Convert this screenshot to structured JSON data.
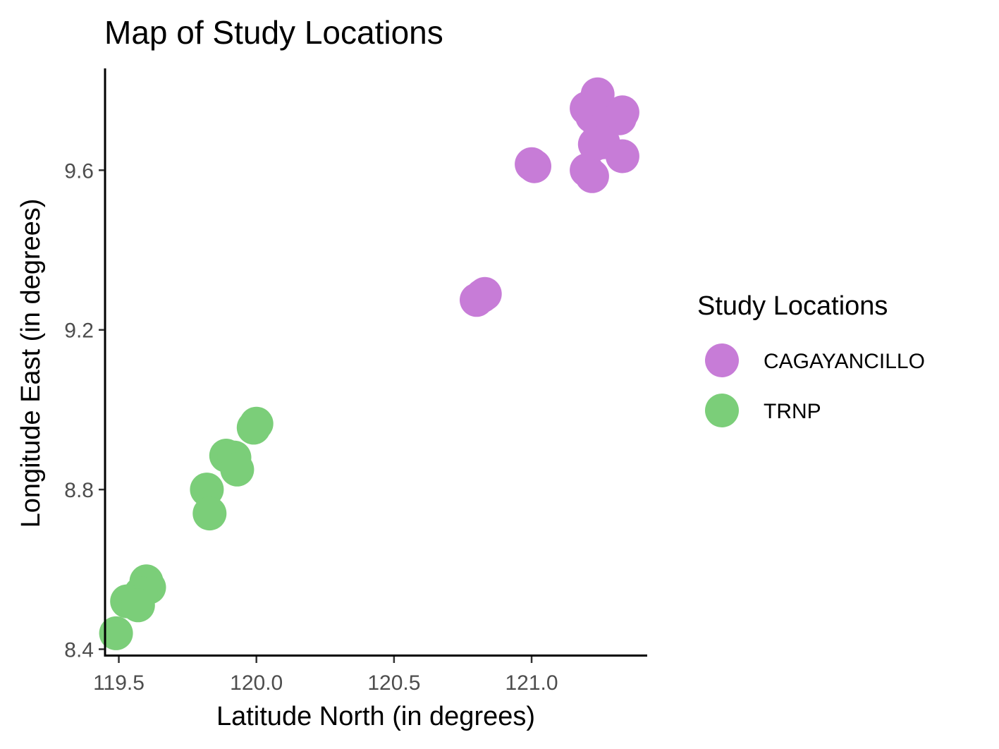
{
  "chart_data": {
    "type": "scatter",
    "title": "Map of Study Locations",
    "xlabel": "Latitude North (in degrees)",
    "ylabel": "Longitude East (in degrees)",
    "xlim": [
      119.45,
      121.42
    ],
    "ylim": [
      8.385,
      9.855
    ],
    "x_ticks": [
      119.5,
      120.0,
      120.5,
      121.0
    ],
    "x_tick_labels": [
      "119.5",
      "120.0",
      "120.5",
      "121.0"
    ],
    "y_ticks": [
      8.4,
      8.8,
      9.2,
      9.6
    ],
    "y_tick_labels": [
      "8.4",
      "8.8",
      "9.2",
      "9.6"
    ],
    "grid": false,
    "legend": {
      "title": "Study Locations",
      "placement": "right"
    },
    "series": [
      {
        "name": "CAGAYANCILLO",
        "color": "#C77CD7",
        "points": [
          [
            121.24,
            9.79
          ],
          [
            121.2,
            9.755
          ],
          [
            121.22,
            9.735
          ],
          [
            121.33,
            9.745
          ],
          [
            121.32,
            9.73
          ],
          [
            121.25,
            9.7
          ],
          [
            121.23,
            9.665
          ],
          [
            121.26,
            9.67
          ],
          [
            121.33,
            9.635
          ],
          [
            121.2,
            9.6
          ],
          [
            121.22,
            9.585
          ],
          [
            121.0,
            9.615
          ],
          [
            121.01,
            9.61
          ],
          [
            120.82,
            9.285
          ],
          [
            120.8,
            9.275
          ],
          [
            120.83,
            9.29
          ]
        ]
      },
      {
        "name": "TRNP",
        "color": "#7BCE79",
        "points": [
          [
            119.99,
            8.955
          ],
          [
            120.0,
            8.965
          ],
          [
            119.89,
            8.885
          ],
          [
            119.92,
            8.88
          ],
          [
            119.93,
            8.85
          ],
          [
            119.82,
            8.8
          ],
          [
            119.83,
            8.74
          ],
          [
            119.6,
            8.57
          ],
          [
            119.61,
            8.555
          ],
          [
            119.58,
            8.54
          ],
          [
            119.55,
            8.52
          ],
          [
            119.53,
            8.52
          ],
          [
            119.57,
            8.51
          ],
          [
            119.49,
            8.44
          ]
        ]
      }
    ]
  }
}
